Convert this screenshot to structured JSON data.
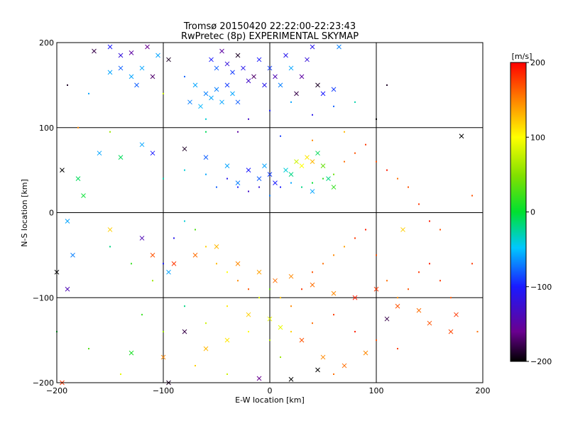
{
  "chart_data": {
    "type": "scatter",
    "title": "Tromsø 20150420 22:22:00-22:23:43",
    "subtitle": "RwPretec (8p) EXPERIMENTAL SKYMAP",
    "xlabel": "E-W location [km]",
    "ylabel": "N-S location [km]",
    "xlim": [
      -200,
      200
    ],
    "ylim": [
      -200,
      200
    ],
    "xticks": [
      -200,
      -100,
      0,
      100,
      200
    ],
    "yticks": [
      -200,
      -100,
      0,
      100,
      200
    ],
    "grid": true,
    "colorbar": {
      "label": "[m/s]",
      "range": [
        -200,
        200
      ],
      "ticks": [
        200,
        100,
        0,
        -100,
        -200
      ],
      "colormap": "rainbow: black-purple-blue-cyan-green-yellow-orange-red"
    },
    "markers": [
      "x (larger)",
      "dot (smaller)"
    ],
    "series": [
      {
        "marker": "x",
        "points": [
          [
            -165,
            190,
            -180
          ],
          [
            -150,
            195,
            -100
          ],
          [
            -140,
            185,
            -120
          ],
          [
            -130,
            188,
            -150
          ],
          [
            -115,
            195,
            -160
          ],
          [
            -105,
            185,
            -60
          ],
          [
            -95,
            180,
            -190
          ],
          [
            -150,
            165,
            -60
          ],
          [
            -140,
            170,
            -80
          ],
          [
            -130,
            160,
            -60
          ],
          [
            -125,
            150,
            -80
          ],
          [
            -120,
            170,
            -60
          ],
          [
            -110,
            160,
            -170
          ],
          [
            -55,
            180,
            -100
          ],
          [
            -50,
            170,
            -80
          ],
          [
            -45,
            190,
            -150
          ],
          [
            -40,
            175,
            -120
          ],
          [
            -35,
            165,
            -90
          ],
          [
            -30,
            185,
            -190
          ],
          [
            -25,
            170,
            -110
          ],
          [
            -20,
            155,
            -130
          ],
          [
            -15,
            160,
            -170
          ],
          [
            -10,
            180,
            -100
          ],
          [
            -5,
            150,
            -110
          ],
          [
            0,
            170,
            -90
          ],
          [
            5,
            160,
            -140
          ],
          [
            10,
            150,
            -70
          ],
          [
            15,
            185,
            -110
          ],
          [
            20,
            170,
            -60
          ],
          [
            25,
            140,
            -180
          ],
          [
            30,
            160,
            -150
          ],
          [
            35,
            180,
            -120
          ],
          [
            40,
            195,
            -110
          ],
          [
            45,
            150,
            -190
          ],
          [
            50,
            140,
            -100
          ],
          [
            60,
            145,
            -90
          ],
          [
            65,
            195,
            -70
          ],
          [
            -60,
            140,
            -70
          ],
          [
            -55,
            135,
            -60
          ],
          [
            -50,
            145,
            -70
          ],
          [
            -45,
            130,
            -60
          ],
          [
            -40,
            150,
            -90
          ],
          [
            -35,
            140,
            -60
          ],
          [
            -30,
            130,
            -80
          ],
          [
            -70,
            150,
            -60
          ],
          [
            -75,
            130,
            -70
          ],
          [
            -65,
            125,
            -55
          ],
          [
            -160,
            70,
            -60
          ],
          [
            -140,
            65,
            -10
          ],
          [
            -120,
            80,
            -60
          ],
          [
            -110,
            70,
            -100
          ],
          [
            -80,
            75,
            -190
          ],
          [
            -60,
            65,
            -80
          ],
          [
            -40,
            55,
            -60
          ],
          [
            -20,
            50,
            -100
          ],
          [
            -10,
            40,
            -80
          ],
          [
            0,
            45,
            -90
          ],
          [
            -30,
            35,
            -70
          ],
          [
            -5,
            55,
            -60
          ],
          [
            5,
            35,
            -100
          ],
          [
            15,
            50,
            -40
          ],
          [
            25,
            60,
            80
          ],
          [
            30,
            55,
            100
          ],
          [
            35,
            65,
            110
          ],
          [
            40,
            60,
            130
          ],
          [
            20,
            45,
            -20
          ],
          [
            45,
            70,
            -10
          ],
          [
            50,
            55,
            40
          ],
          [
            55,
            40,
            -20
          ],
          [
            60,
            30,
            20
          ],
          [
            40,
            25,
            -60
          ],
          [
            -195,
            50,
            -200
          ],
          [
            -190,
            -10,
            -60
          ],
          [
            -180,
            40,
            -10
          ],
          [
            -175,
            20,
            0
          ],
          [
            -185,
            -50,
            -70
          ],
          [
            -150,
            -20,
            120
          ],
          [
            -120,
            -30,
            -140
          ],
          [
            -110,
            -50,
            170
          ],
          [
            -95,
            -70,
            -60
          ],
          [
            -90,
            -60,
            180
          ],
          [
            -70,
            -50,
            160
          ],
          [
            -50,
            -40,
            130
          ],
          [
            -30,
            -60,
            150
          ],
          [
            -10,
            -70,
            140
          ],
          [
            5,
            -80,
            160
          ],
          [
            20,
            -75,
            150
          ],
          [
            40,
            -85,
            160
          ],
          [
            60,
            -95,
            150
          ],
          [
            80,
            -100,
            190
          ],
          [
            100,
            -90,
            180
          ],
          [
            120,
            -110,
            170
          ],
          [
            140,
            -115,
            160
          ],
          [
            150,
            -130,
            170
          ],
          [
            170,
            -140,
            175
          ],
          [
            175,
            -120,
            180
          ],
          [
            -190,
            -90,
            -140
          ],
          [
            -130,
            -165,
            10
          ],
          [
            -100,
            -170,
            150
          ],
          [
            -80,
            -140,
            -180
          ],
          [
            -60,
            -160,
            130
          ],
          [
            -40,
            -150,
            110
          ],
          [
            -20,
            -120,
            120
          ],
          [
            0,
            -125,
            90
          ],
          [
            10,
            -135,
            90
          ],
          [
            30,
            -150,
            170
          ],
          [
            50,
            -170,
            150
          ],
          [
            70,
            -180,
            160
          ],
          [
            90,
            -165,
            150
          ],
          [
            110,
            -125,
            -180
          ],
          [
            -195,
            -200,
            180
          ],
          [
            -95,
            -200,
            -190
          ],
          [
            -10,
            -195,
            -160
          ],
          [
            20,
            -196,
            -200
          ],
          [
            45,
            -185,
            -200
          ],
          [
            180,
            90,
            -200
          ],
          [
            -200,
            -70,
            -200
          ],
          [
            125,
            -20,
            120
          ]
        ]
      },
      {
        "marker": "dot",
        "points": [
          [
            -190,
            150,
            -190
          ],
          [
            -170,
            140,
            -60
          ],
          [
            -100,
            140,
            80
          ],
          [
            -80,
            160,
            -80
          ],
          [
            -60,
            110,
            -40
          ],
          [
            -20,
            110,
            -130
          ],
          [
            0,
            120,
            -100
          ],
          [
            20,
            130,
            -60
          ],
          [
            40,
            115,
            -110
          ],
          [
            60,
            125,
            -80
          ],
          [
            80,
            130,
            -30
          ],
          [
            100,
            110,
            -200
          ],
          [
            110,
            150,
            -190
          ],
          [
            -30,
            95,
            -150
          ],
          [
            10,
            90,
            -90
          ],
          [
            -100,
            40,
            -30
          ],
          [
            -80,
            50,
            -40
          ],
          [
            -60,
            45,
            -60
          ],
          [
            -50,
            30,
            -80
          ],
          [
            -40,
            40,
            -110
          ],
          [
            -30,
            30,
            -100
          ],
          [
            -20,
            25,
            -130
          ],
          [
            -10,
            30,
            -120
          ],
          [
            0,
            20,
            -70
          ],
          [
            10,
            30,
            -100
          ],
          [
            20,
            35,
            -60
          ],
          [
            30,
            30,
            -20
          ],
          [
            40,
            35,
            0
          ],
          [
            50,
            40,
            20
          ],
          [
            60,
            45,
            40
          ],
          [
            70,
            60,
            160
          ],
          [
            80,
            70,
            170
          ],
          [
            90,
            80,
            180
          ],
          [
            100,
            60,
            170
          ],
          [
            110,
            50,
            190
          ],
          [
            120,
            40,
            160
          ],
          [
            130,
            30,
            170
          ],
          [
            140,
            10,
            180
          ],
          [
            150,
            -10,
            190
          ],
          [
            160,
            -20,
            170
          ],
          [
            -150,
            -40,
            -20
          ],
          [
            -130,
            -60,
            20
          ],
          [
            -110,
            -80,
            60
          ],
          [
            -100,
            -60,
            -100
          ],
          [
            -90,
            -30,
            -110
          ],
          [
            -80,
            -10,
            -40
          ],
          [
            -70,
            -20,
            30
          ],
          [
            -60,
            -40,
            120
          ],
          [
            -50,
            -60,
            130
          ],
          [
            -40,
            -70,
            100
          ],
          [
            -30,
            -80,
            150
          ],
          [
            -20,
            -90,
            170
          ],
          [
            -10,
            -100,
            90
          ],
          [
            0,
            -90,
            40
          ],
          [
            10,
            -100,
            130
          ],
          [
            20,
            -110,
            150
          ],
          [
            30,
            -90,
            180
          ],
          [
            40,
            -70,
            170
          ],
          [
            50,
            -60,
            160
          ],
          [
            60,
            -50,
            150
          ],
          [
            70,
            -40,
            140
          ],
          [
            80,
            -30,
            180
          ],
          [
            90,
            -20,
            190
          ],
          [
            100,
            -50,
            170
          ],
          [
            110,
            -80,
            160
          ],
          [
            120,
            -100,
            150
          ],
          [
            130,
            -90,
            170
          ],
          [
            140,
            -70,
            180
          ],
          [
            150,
            -60,
            190
          ],
          [
            160,
            -80,
            180
          ],
          [
            170,
            -100,
            170
          ],
          [
            190,
            -60,
            180
          ],
          [
            -120,
            -120,
            20
          ],
          [
            -100,
            -140,
            60
          ],
          [
            -80,
            -110,
            -20
          ],
          [
            -60,
            -130,
            80
          ],
          [
            -40,
            -110,
            110
          ],
          [
            -20,
            -140,
            100
          ],
          [
            0,
            -150,
            70
          ],
          [
            20,
            -140,
            120
          ],
          [
            40,
            -130,
            160
          ],
          [
            60,
            -120,
            180
          ],
          [
            80,
            -140,
            190
          ],
          [
            100,
            -150,
            170
          ],
          [
            120,
            -160,
            180
          ],
          [
            -70,
            -180,
            120
          ],
          [
            -40,
            -190,
            80
          ],
          [
            10,
            -170,
            60
          ],
          [
            60,
            -190,
            160
          ],
          [
            -180,
            100,
            150
          ],
          [
            -150,
            95,
            60
          ],
          [
            -60,
            95,
            -10
          ],
          [
            40,
            85,
            150
          ],
          [
            70,
            95,
            130
          ],
          [
            -200,
            -140,
            0
          ],
          [
            -170,
            -160,
            30
          ],
          [
            -140,
            -190,
            90
          ],
          [
            190,
            20,
            170
          ],
          [
            195,
            -140,
            160
          ]
        ]
      }
    ]
  }
}
